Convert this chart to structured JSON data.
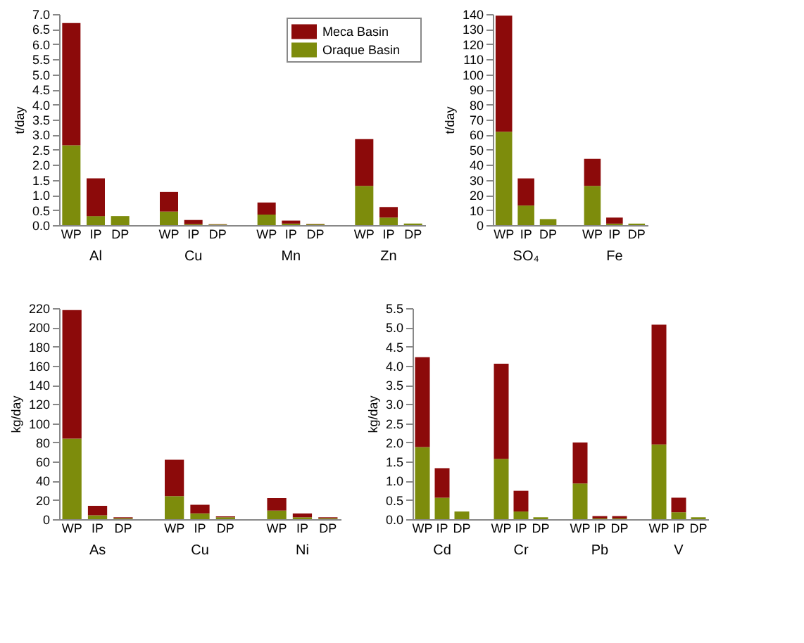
{
  "chart_data": [
    {
      "type": "bar",
      "stacked": true,
      "ylabel": "t/day",
      "legend": "top right",
      "categories": [
        "WP",
        "IP",
        "DP",
        null,
        "WP",
        "IP",
        "DP",
        null,
        "WP",
        "IP",
        "DP",
        null,
        "WP",
        "IP",
        "DP"
      ],
      "annotations": [
        "Al",
        "Cu",
        "Mn",
        "Zn"
      ],
      "ylim": [
        0,
        7
      ],
      "yticks": [
        {
          "value": 0,
          "label": "0.0"
        },
        0.5,
        {
          "value": 1,
          "label": "1.0"
        },
        1.5,
        {
          "value": 2,
          "label": "2.0"
        },
        2.5,
        {
          "value": 3,
          "label": "3.0"
        },
        3.5,
        {
          "value": 4,
          "label": "4.0"
        },
        4.5,
        {
          "value": 5,
          "label": "5.0"
        },
        5.5,
        {
          "value": 6,
          "label": "6.0"
        },
        6.5,
        {
          "value": 7,
          "label": "7.0"
        }
      ],
      "series": [
        {
          "name": "Oraque Basin",
          "color": "#7d8c0c",
          "values": [
            2.65,
            0.3,
            0.3,
            null,
            0.45,
            0.03,
            0.02,
            null,
            0.35,
            0.05,
            0.03,
            null,
            1.3,
            0.25,
            0.05
          ]
        },
        {
          "name": "Meca Basin",
          "color": "#8c0a0a",
          "values": [
            4.05,
            1.25,
            0,
            null,
            0.65,
            0.14,
            0.01,
            null,
            0.4,
            0.1,
            0.01,
            null,
            1.55,
            0.35,
            null
          ]
        }
      ]
    },
    {
      "type": "bar",
      "stacked": true,
      "ylabel": "t/day",
      "categories": [
        "WP",
        "IP",
        "DP",
        null,
        "WP",
        "IP",
        "DP"
      ],
      "annotations": [
        "SO₄",
        "Fe"
      ],
      "ylim": [
        0,
        140
      ],
      "yticks": [
        0,
        10,
        20,
        30,
        40,
        50,
        60,
        70,
        80,
        90,
        100,
        110,
        120,
        130,
        140
      ],
      "series": [
        {
          "color": "#7d8c0c",
          "values": [
            62,
            13,
            4,
            null,
            26,
            1,
            1
          ]
        },
        {
          "color": "#8c0a0a",
          "values": [
            77,
            18,
            0,
            null,
            18,
            4,
            0
          ]
        }
      ]
    },
    {
      "type": "bar",
      "stacked": true,
      "ylabel": "kg/day",
      "categories": [
        "WP",
        "IP",
        "DP",
        null,
        "WP",
        "IP",
        "DP",
        null,
        "WP",
        "IP",
        "DP"
      ],
      "annotations": [
        "As",
        "Cu",
        "Ni"
      ],
      "ylim": [
        0,
        220
      ],
      "yticks": [
        0,
        20,
        40,
        60,
        80,
        100,
        120,
        140,
        160,
        180,
        200,
        220
      ],
      "series": [
        {
          "color": "#7d8c0c",
          "values": [
            84,
            4,
            1,
            null,
            24,
            6,
            2,
            null,
            9,
            2,
            1
          ]
        },
        {
          "color": "#8c0a0a",
          "values": [
            134,
            10,
            1,
            null,
            38,
            9,
            1,
            null,
            13,
            4,
            1
          ]
        }
      ]
    },
    {
      "type": "bar",
      "stacked": true,
      "ylabel": "kg/day",
      "categories": [
        "WP",
        "IP",
        "DP",
        null,
        "WP",
        "IP",
        "DP",
        null,
        "WP",
        "IP",
        "DP",
        null,
        "WP",
        "IP",
        "DP"
      ],
      "annotations": [
        "Cd",
        "Cr",
        "Pb",
        "V"
      ],
      "ylim": [
        0,
        5.5
      ],
      "yticks": [
        {
          "value": 0,
          "label": "0.0"
        },
        0.5,
        {
          "value": 1,
          "label": "1.0"
        },
        1.5,
        {
          "value": 2,
          "label": "2.0"
        },
        2.5,
        {
          "value": 3,
          "label": "3.0"
        },
        3.5,
        {
          "value": 4,
          "label": "4.0"
        },
        4.5,
        {
          "value": 5,
          "label": "5.0"
        },
        5.5
      ],
      "series": [
        {
          "color": "#7d8c0c",
          "values": [
            1.88,
            0.56,
            0.2,
            null,
            1.57,
            0.2,
            0.05,
            null,
            0.93,
            0.02,
            0.02,
            null,
            1.95,
            0.18,
            0.05
          ]
        },
        {
          "color": "#8c0a0a",
          "values": [
            2.34,
            0.77,
            0,
            null,
            2.48,
            0.54,
            null,
            null,
            1.07,
            0.06,
            0.06,
            null,
            3.12,
            0.38,
            null
          ]
        }
      ]
    }
  ]
}
